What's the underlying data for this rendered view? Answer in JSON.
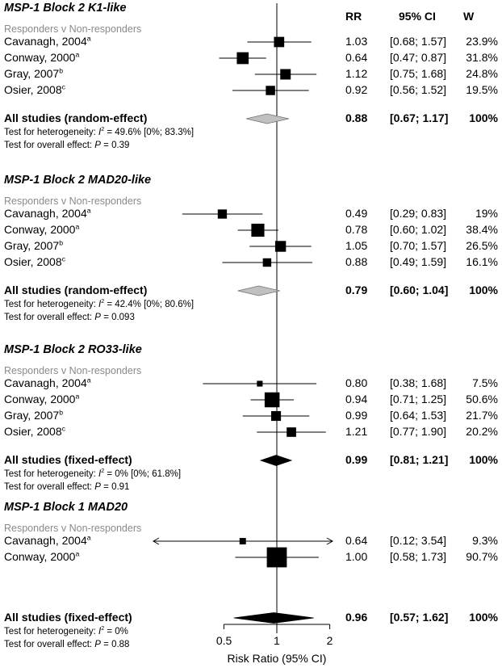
{
  "headers": {
    "rr": "RR",
    "ci": "95% CI",
    "w": "W"
  },
  "chart_data": {
    "type": "forest",
    "xlabel": "Risk Ratio (95% CI)",
    "xscale": "log",
    "xlim": [
      0.5,
      2
    ],
    "xticks": [
      "0.5",
      "1",
      "2"
    ],
    "xtick_values": [
      0.5,
      1,
      2
    ],
    "reference_line": 1,
    "subtitle": "Responders v Non-responders",
    "colors": {
      "random_effect_diamond": "#c0c0c0",
      "fixed_effect_diamond": "#000000",
      "subtitle": "#8a8a8a"
    },
    "sections": [
      {
        "title": "MSP-1 Block 2 K1-like",
        "studies": [
          {
            "author": "Cavanagh, 2004",
            "sup": "a",
            "rr": 1.03,
            "lo": 0.68,
            "hi": 1.57,
            "rr_text": "1.03",
            "ci_text": "[0.68; 1.57]",
            "w_text": "23.9%"
          },
          {
            "author": "Conway, 2000",
            "sup": "a",
            "rr": 0.64,
            "lo": 0.47,
            "hi": 0.87,
            "rr_text": "0.64",
            "ci_text": "[0.47; 0.87]",
            "w_text": "31.8%"
          },
          {
            "author": "Gray, 2007",
            "sup": "b",
            "rr": 1.12,
            "lo": 0.75,
            "hi": 1.68,
            "rr_text": "1.12",
            "ci_text": "[0.75; 1.68]",
            "w_text": "24.8%"
          },
          {
            "author": "Osier, 2008",
            "sup": "c",
            "rr": 0.92,
            "lo": 0.56,
            "hi": 1.52,
            "rr_text": "0.92",
            "ci_text": "[0.56; 1.52]",
            "w_text": "19.5%"
          }
        ],
        "pooled": {
          "label": "All studies (random-effect)",
          "effect": "random",
          "rr": 0.88,
          "lo": 0.67,
          "hi": 1.17,
          "rr_text": "0.88",
          "ci_text": "[0.67; 1.17]",
          "w_text": "100%"
        },
        "het_prefix": "Test for heterogeneity: ",
        "het_i2_value": "= 49.6% [0%; 83.3%]",
        "overall_prefix": "Test for overall effect: ",
        "overall_p_value": "= 0.39"
      },
      {
        "title": "MSP-1 Block 2 MAD20-like",
        "studies": [
          {
            "author": "Cavanagh, 2004",
            "sup": "a",
            "rr": 0.49,
            "lo": 0.29,
            "hi": 0.83,
            "rr_text": "0.49",
            "ci_text": "[0.29; 0.83]",
            "w_text": "19%"
          },
          {
            "author": "Conway, 2000",
            "sup": "a",
            "rr": 0.78,
            "lo": 0.6,
            "hi": 1.02,
            "rr_text": "0.78",
            "ci_text": "[0.60; 1.02]",
            "w_text": "38.4%"
          },
          {
            "author": "Gray, 2007",
            "sup": "b",
            "rr": 1.05,
            "lo": 0.7,
            "hi": 1.57,
            "rr_text": "1.05",
            "ci_text": "[0.70; 1.57]",
            "w_text": "26.5%"
          },
          {
            "author": "Osier, 2008",
            "sup": "c",
            "rr": 0.88,
            "lo": 0.49,
            "hi": 1.59,
            "rr_text": "0.88",
            "ci_text": "[0.49; 1.59]",
            "w_text": "16.1%"
          }
        ],
        "pooled": {
          "label": "All studies (random-effect)",
          "effect": "random",
          "rr": 0.79,
          "lo": 0.6,
          "hi": 1.04,
          "rr_text": "0.79",
          "ci_text": "[0.60; 1.04]",
          "w_text": "100%"
        },
        "het_prefix": "Test for heterogeneity: ",
        "het_i2_value": "= 42.4% [0%; 80.6%]",
        "overall_prefix": "Test for overall effect: ",
        "overall_p_value": "= 0.093"
      },
      {
        "title": "MSP-1 Block 2 RO33-like",
        "studies": [
          {
            "author": "Cavanagh, 2004",
            "sup": "a",
            "rr": 0.8,
            "lo": 0.38,
            "hi": 1.68,
            "rr_text": "0.80",
            "ci_text": "[0.38; 1.68]",
            "w_text": "7.5%"
          },
          {
            "author": "Conway, 2000",
            "sup": "a",
            "rr": 0.94,
            "lo": 0.71,
            "hi": 1.25,
            "rr_text": "0.94",
            "ci_text": "[0.71; 1.25]",
            "w_text": "50.6%"
          },
          {
            "author": "Gray, 2007",
            "sup": "b",
            "rr": 0.99,
            "lo": 0.64,
            "hi": 1.53,
            "rr_text": "0.99",
            "ci_text": "[0.64; 1.53]",
            "w_text": "21.7%"
          },
          {
            "author": "Osier, 2008",
            "sup": "c",
            "rr": 1.21,
            "lo": 0.77,
            "hi": 1.9,
            "rr_text": "1.21",
            "ci_text": "[0.77; 1.90]",
            "w_text": "20.2%"
          }
        ],
        "pooled": {
          "label": "All studies (fixed-effect)",
          "effect": "fixed",
          "rr": 0.99,
          "lo": 0.81,
          "hi": 1.21,
          "rr_text": "0.99",
          "ci_text": "[0.81; 1.21]",
          "w_text": "100%"
        },
        "het_prefix": "Test for heterogeneity: ",
        "het_i2_value": "= 0% [0%; 61.8%]",
        "overall_prefix": "Test for overall effect: ",
        "overall_p_value": "= 0.91"
      },
      {
        "title": "MSP-1 Block 1 MAD20",
        "studies": [
          {
            "author": "Cavanagh, 2004",
            "sup": "a",
            "rr": 0.64,
            "lo": 0.12,
            "hi": 3.54,
            "rr_text": "0.64",
            "ci_text": "[0.12; 3.54]",
            "w_text": "9.3%"
          },
          {
            "author": "Conway, 2000",
            "sup": "a",
            "rr": 1.0,
            "lo": 0.58,
            "hi": 1.73,
            "rr_text": "1.00",
            "ci_text": "[0.58; 1.73]",
            "w_text": "90.7%"
          }
        ],
        "pooled": {
          "label": "All studies (fixed-effect)",
          "effect": "fixed",
          "rr": 0.96,
          "lo": 0.57,
          "hi": 1.62,
          "rr_text": "0.96",
          "ci_text": "[0.57; 1.62]",
          "w_text": "100%"
        },
        "het_prefix": "Test for heterogeneity: ",
        "het_i2_value": "= 0%",
        "overall_prefix": "Test for overall effect: ",
        "overall_p_value": "= 0.88"
      }
    ]
  }
}
